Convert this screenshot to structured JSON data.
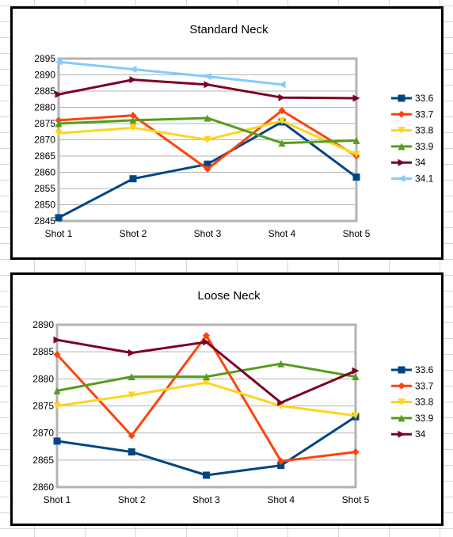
{
  "chart_data": [
    {
      "type": "line",
      "title": "Standard Neck",
      "categories": [
        "Shot 1",
        "Shot 2",
        "Shot 3",
        "Shot 4",
        "Shot 5"
      ],
      "ylim": [
        2845,
        2895
      ],
      "yticks": [
        2845,
        2850,
        2855,
        2860,
        2865,
        2870,
        2875,
        2880,
        2885,
        2890,
        2895
      ],
      "grid": true,
      "legend_position": "right",
      "series": [
        {
          "name": "33.6",
          "color": "#004586",
          "marker": "square",
          "values": [
            2846,
            2858,
            2862.5,
            2875.5,
            2858.5
          ]
        },
        {
          "name": "33.7",
          "color": "#ff420e",
          "marker": "diamond",
          "values": [
            2876,
            2877.5,
            2861,
            2879,
            2865
          ]
        },
        {
          "name": "33.8",
          "color": "#ffd320",
          "marker": "triangle-down",
          "values": [
            2872,
            2873.7,
            2870,
            2875.8,
            2865.5
          ]
        },
        {
          "name": "33.9",
          "color": "#579d1c",
          "marker": "triangle-up",
          "values": [
            2875,
            2876,
            2876.7,
            2869,
            2869.8
          ]
        },
        {
          "name": "34",
          "color": "#7e0021",
          "marker": "triangle-right",
          "values": [
            2884,
            2888.5,
            2887,
            2883,
            2882.8
          ]
        },
        {
          "name": "34.1",
          "color": "#83caff",
          "marker": "triangle-left",
          "values": [
            2894,
            2891.7,
            2889.5,
            2887,
            null
          ]
        }
      ]
    },
    {
      "type": "line",
      "title": "Loose Neck",
      "categories": [
        "Shot 1",
        "Shot 2",
        "Shot 3",
        "Shot 4",
        "Shot 5"
      ],
      "ylim": [
        2860,
        2890
      ],
      "yticks": [
        2860,
        2865,
        2870,
        2875,
        2880,
        2885,
        2890
      ],
      "grid": true,
      "legend_position": "right",
      "series": [
        {
          "name": "33.6",
          "color": "#004586",
          "marker": "square",
          "values": [
            2868.5,
            2866.5,
            2862.2,
            2864,
            2873
          ]
        },
        {
          "name": "33.7",
          "color": "#ff420e",
          "marker": "diamond",
          "values": [
            2884.5,
            2869.5,
            2888,
            2864.8,
            2866.5
          ]
        },
        {
          "name": "33.8",
          "color": "#ffd320",
          "marker": "triangle-down",
          "values": [
            2875,
            2877,
            2879.3,
            2875,
            2873.2
          ]
        },
        {
          "name": "33.9",
          "color": "#579d1c",
          "marker": "triangle-up",
          "values": [
            2877.8,
            2880.4,
            2880.4,
            2882.8,
            2880.4
          ]
        },
        {
          "name": "34",
          "color": "#7e0021",
          "marker": "triangle-right",
          "values": [
            2887.2,
            2884.8,
            2886.8,
            2875.6,
            2881.5
          ]
        }
      ]
    }
  ]
}
